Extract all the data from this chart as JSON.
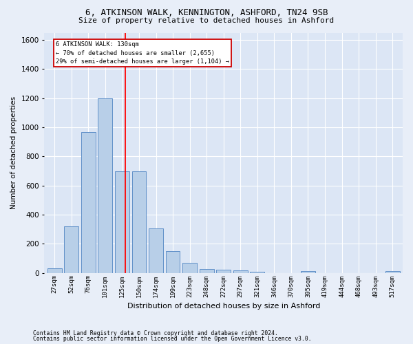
{
  "title1": "6, ATKINSON WALK, KENNINGTON, ASHFORD, TN24 9SB",
  "title2": "Size of property relative to detached houses in Ashford",
  "xlabel": "Distribution of detached houses by size in Ashford",
  "ylabel": "Number of detached properties",
  "categories": [
    "27sqm",
    "52sqm",
    "76sqm",
    "101sqm",
    "125sqm",
    "150sqm",
    "174sqm",
    "199sqm",
    "223sqm",
    "248sqm",
    "272sqm",
    "297sqm",
    "321sqm",
    "346sqm",
    "370sqm",
    "395sqm",
    "419sqm",
    "444sqm",
    "468sqm",
    "493sqm",
    "517sqm"
  ],
  "values": [
    30,
    320,
    965,
    1200,
    700,
    700,
    305,
    150,
    70,
    28,
    20,
    15,
    10,
    0,
    0,
    12,
    0,
    0,
    0,
    0,
    12
  ],
  "bar_color": "#b8cfe8",
  "bar_edge_color": "#6090c8",
  "bg_color": "#dce6f5",
  "grid_color": "#ffffff",
  "fig_bg_color": "#e8eef8",
  "annotation_text1": "6 ATKINSON WALK: 130sqm",
  "annotation_text2": "← 70% of detached houses are smaller (2,655)",
  "annotation_text3": "29% of semi-detached houses are larger (1,104) →",
  "footnote1": "Contains HM Land Registry data © Crown copyright and database right 2024.",
  "footnote2": "Contains public sector information licensed under the Open Government Licence v3.0.",
  "ylim": [
    0,
    1650
  ],
  "red_line_x": 4.2
}
